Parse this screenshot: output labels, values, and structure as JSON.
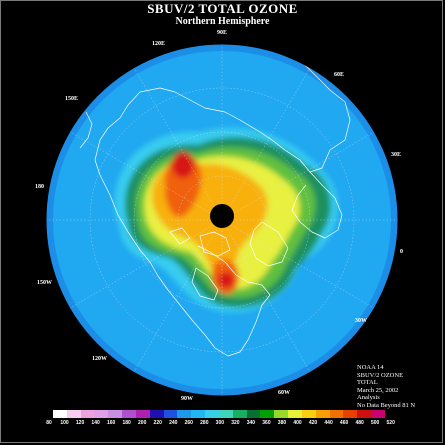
{
  "title": "SBUV/2 TOTAL OZONE",
  "subtitle": "Northern Hemisphere",
  "longitude_labels": [
    {
      "id": "lon-90e",
      "text": "90E"
    },
    {
      "id": "lon-120e",
      "text": "120E"
    },
    {
      "id": "lon-60e",
      "text": "60E"
    },
    {
      "id": "lon-150e",
      "text": "150E"
    },
    {
      "id": "lon-30e",
      "text": "30E"
    },
    {
      "id": "lon-180",
      "text": "180"
    },
    {
      "id": "lon-0",
      "text": "0"
    },
    {
      "id": "lon-150w",
      "text": "150W"
    },
    {
      "id": "lon-30w",
      "text": "30W"
    },
    {
      "id": "lon-120w",
      "text": "120W"
    },
    {
      "id": "lon-60w",
      "text": "60W"
    },
    {
      "id": "lon-90w",
      "text": "90W"
    }
  ],
  "info": {
    "line1": "NOAA 14",
    "line2": "SBUV/2 OZONE",
    "line3": "TOTAL",
    "line4": "March 25, 2002",
    "line5": "Analysis",
    "line6": "No Data Beyond 81 N"
  },
  "colorbar": {
    "colors": [
      "#ffffff",
      "#f7cdf0",
      "#eea0e0",
      "#dfa0e8",
      "#c890e0",
      "#b050d0",
      "#b020b0",
      "#2010b0",
      "#2050e0",
      "#1c9ae8",
      "#20b8f0",
      "#38d0e8",
      "#40d4b8",
      "#18b060",
      "#087030",
      "#00a000",
      "#98d828",
      "#e8f038",
      "#f8d010",
      "#f8a000",
      "#f07000",
      "#e84000",
      "#d01010",
      "#c80070"
    ],
    "ticks": [
      "80",
      "100",
      "120",
      "140",
      "160",
      "180",
      "200",
      "220",
      "240",
      "260",
      "280",
      "300",
      "320",
      "340",
      "360",
      "380",
      "400",
      "420",
      "440",
      "460",
      "480",
      "500",
      "520"
    ]
  }
}
